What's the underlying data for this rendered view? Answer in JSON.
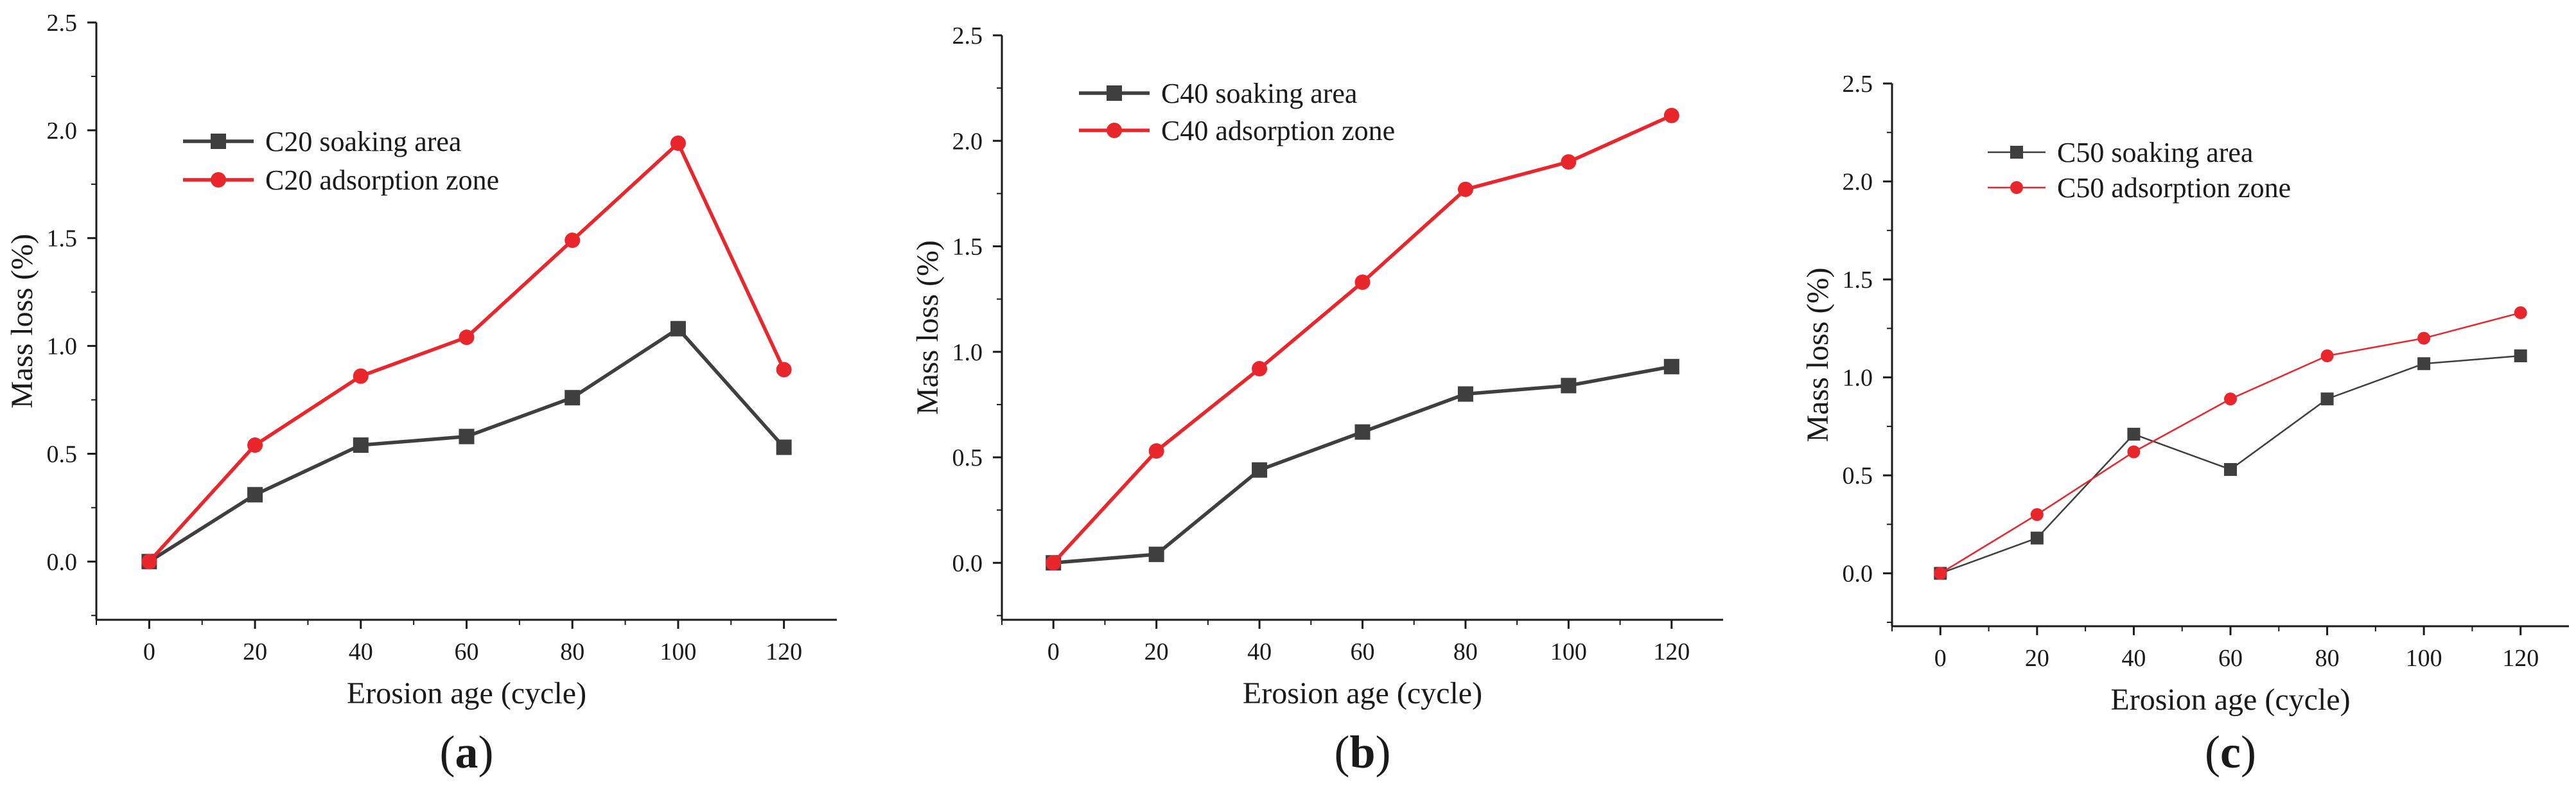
{
  "colors": {
    "soaking": "#3f3f3f",
    "adsorption": "#e8262b",
    "axis": "#1a1a1a",
    "background": "#ffffff"
  },
  "chart_data": [
    {
      "type": "line",
      "panel_label": "a",
      "xlabel": "Erosion age (cycle)",
      "ylabel": "Mass loss (%)",
      "x": [
        0,
        20,
        40,
        60,
        80,
        100,
        120
      ],
      "x_tick_labels": [
        "0",
        "20",
        "40",
        "60",
        "80",
        "100",
        "120"
      ],
      "y_tick_labels": [
        "0.0",
        "0.5",
        "1.0",
        "1.5",
        "2.0",
        "2.5"
      ],
      "xlim": [
        -10,
        130
      ],
      "ylim": [
        -0.27,
        2.5
      ],
      "legend_position": "upper-left",
      "series": [
        {
          "name": "C20 soaking area",
          "marker": "square",
          "values": [
            0.0,
            0.31,
            0.54,
            0.58,
            0.76,
            1.08,
            0.53
          ]
        },
        {
          "name": "C20 adsorption zone",
          "marker": "circle",
          "values": [
            0.0,
            0.54,
            0.86,
            1.04,
            1.49,
            1.94,
            0.89
          ]
        }
      ]
    },
    {
      "type": "line",
      "panel_label": "b",
      "xlabel": "Erosion age (cycle)",
      "ylabel": "Mass loss (%)",
      "x": [
        0,
        20,
        40,
        60,
        80,
        100,
        120
      ],
      "x_tick_labels": [
        "0",
        "20",
        "40",
        "60",
        "80",
        "100",
        "120"
      ],
      "y_tick_labels": [
        "0.0",
        "0.5",
        "1.0",
        "1.5",
        "2.0",
        "2.5"
      ],
      "xlim": [
        -10,
        130
      ],
      "ylim": [
        -0.27,
        2.5
      ],
      "legend_position": "upper-left",
      "series": [
        {
          "name": "C40 soaking area",
          "marker": "square",
          "values": [
            0.0,
            0.04,
            0.44,
            0.62,
            0.8,
            0.84,
            0.93
          ]
        },
        {
          "name": "C40 adsorption zone",
          "marker": "circle",
          "values": [
            0.0,
            0.53,
            0.92,
            1.33,
            1.77,
            1.9,
            2.12
          ]
        }
      ]
    },
    {
      "type": "line",
      "panel_label": "c",
      "xlabel": "Erosion age (cycle)",
      "ylabel": "Mass loss (%)",
      "x": [
        0,
        20,
        40,
        60,
        80,
        100,
        120
      ],
      "x_tick_labels": [
        "0",
        "20",
        "40",
        "60",
        "80",
        "100",
        "120"
      ],
      "y_tick_labels": [
        "0.0",
        "0.5",
        "1.0",
        "1.5",
        "2.0",
        "2.5"
      ],
      "xlim": [
        -10,
        130
      ],
      "ylim": [
        -0.27,
        2.5
      ],
      "legend_position": "upper-left",
      "series": [
        {
          "name": "C50 soaking area",
          "marker": "square",
          "values": [
            0.0,
            0.18,
            0.71,
            0.53,
            0.89,
            1.07,
            1.11
          ]
        },
        {
          "name": "C50 adsorption zone",
          "marker": "circle",
          "values": [
            0.0,
            0.3,
            0.62,
            0.89,
            1.11,
            1.2,
            1.33
          ]
        }
      ]
    }
  ]
}
